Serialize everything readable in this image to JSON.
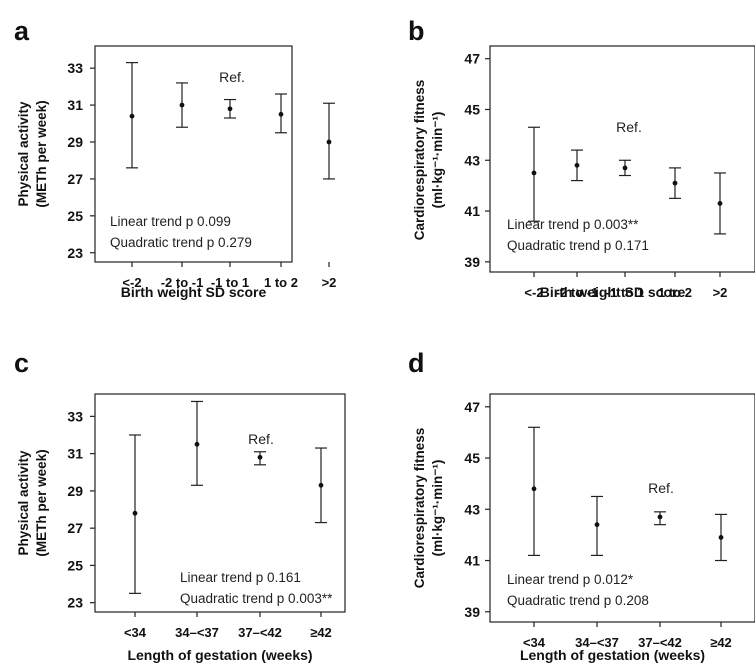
{
  "chart_data": [
    {
      "type": "errorbar",
      "panel_label": "a",
      "title": "",
      "ylabel_lines": [
        "Physical activity",
        "(METh per week)"
      ],
      "xlabel": "Birth weight SD score",
      "categories": [
        "<-2",
        "-2 to -1",
        "-1 to 1",
        "1 to 2",
        ">2"
      ],
      "ylim": [
        22.5,
        34.2
      ],
      "yticks": [
        23,
        25,
        27,
        29,
        31,
        33
      ],
      "series": [
        {
          "mean": [
            30.4,
            31.0,
            30.8,
            30.5,
            29.0
          ],
          "lower": [
            27.6,
            29.8,
            30.3,
            29.5,
            27.0
          ],
          "upper": [
            33.3,
            32.2,
            31.3,
            31.6,
            31.1
          ]
        }
      ],
      "reference": {
        "label": "Ref.",
        "category_index": 2
      },
      "annotations": [
        "Linear trend p 0.099",
        "Quadratic trend p 0.279"
      ],
      "grid": false
    },
    {
      "type": "errorbar",
      "panel_label": "b",
      "title": "",
      "ylabel_lines": [
        "Cardiorespiratory fitness",
        "(ml·kg⁻¹·min⁻¹)"
      ],
      "xlabel": "Birth weight SD score",
      "categories": [
        "<-2",
        "-2 to -1",
        "-1 to 1",
        "1 to 2",
        ">2"
      ],
      "ylim": [
        38.6,
        47.5
      ],
      "yticks": [
        39,
        41,
        43,
        45,
        47
      ],
      "series": [
        {
          "mean": [
            42.5,
            42.8,
            42.7,
            42.1,
            41.3
          ],
          "lower": [
            40.6,
            42.2,
            42.4,
            41.5,
            40.1
          ],
          "upper": [
            44.3,
            43.4,
            43.0,
            42.7,
            42.5
          ]
        }
      ],
      "reference": {
        "label": "Ref.",
        "category_index": 2
      },
      "annotations": [
        "Linear trend p 0.003**",
        "Quadratic trend p 0.171"
      ],
      "grid": false
    },
    {
      "type": "errorbar",
      "panel_label": "c",
      "title": "",
      "ylabel_lines": [
        "Physical activity",
        "(METh per week)"
      ],
      "xlabel": "Length of gestation (weeks)",
      "categories": [
        "<34",
        "34–<37",
        "37–<42",
        "≥42"
      ],
      "ylim": [
        22.5,
        34.2
      ],
      "yticks": [
        23,
        25,
        27,
        29,
        31,
        33
      ],
      "series": [
        {
          "mean": [
            27.8,
            31.5,
            30.8,
            29.3
          ],
          "lower": [
            23.5,
            29.3,
            30.4,
            27.3
          ],
          "upper": [
            32.0,
            33.8,
            31.1,
            31.3
          ]
        }
      ],
      "reference": {
        "label": "Ref.",
        "category_index": 2
      },
      "annotations": [
        "Linear trend p 0.161",
        "Quadratic trend p 0.003**"
      ],
      "grid": false
    },
    {
      "type": "errorbar",
      "panel_label": "d",
      "title": "",
      "ylabel_lines": [
        "Cardiorespiratory fitness",
        "(ml·kg⁻¹·min⁻¹)"
      ],
      "xlabel": "Length of gestation (weeks)",
      "categories": [
        "<34",
        "34–<37",
        "37–<42",
        "≥42"
      ],
      "ylim": [
        38.6,
        47.5
      ],
      "yticks": [
        39,
        41,
        43,
        45,
        47
      ],
      "series": [
        {
          "mean": [
            43.8,
            42.4,
            42.7,
            41.9
          ],
          "lower": [
            41.2,
            41.2,
            42.4,
            41.0
          ],
          "upper": [
            46.2,
            43.5,
            42.9,
            42.8
          ]
        }
      ],
      "reference": {
        "label": "Ref.",
        "category_index": 2
      },
      "annotations": [
        "Linear trend p 0.012*",
        "Quadratic trend p 0.208"
      ],
      "grid": false
    }
  ]
}
